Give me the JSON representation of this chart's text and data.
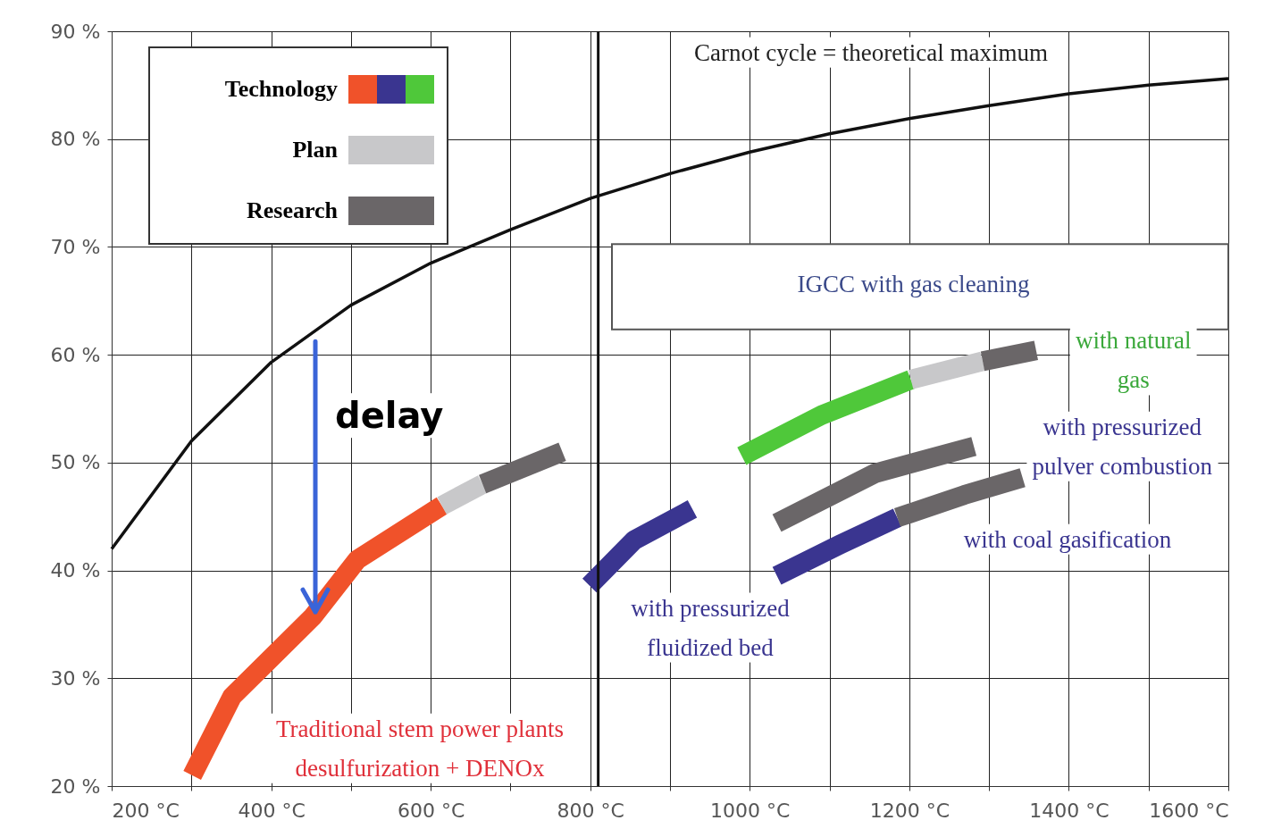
{
  "chart_data": {
    "type": "line",
    "xlim": [
      200,
      1600
    ],
    "ylim": [
      20,
      90
    ],
    "xticks": [
      {
        "value": 200,
        "label": "200 °C"
      },
      {
        "value": 300,
        "label": null
      },
      {
        "value": 400,
        "label": "400 °C"
      },
      {
        "value": 500,
        "label": null
      },
      {
        "value": 600,
        "label": "600 °C"
      },
      {
        "value": 700,
        "label": null
      },
      {
        "value": 800,
        "label": "800 °C"
      },
      {
        "value": 900,
        "label": null
      },
      {
        "value": 1000,
        "label": "1000 °C"
      },
      {
        "value": 1100,
        "label": null
      },
      {
        "value": 1200,
        "label": "1200 °C"
      },
      {
        "value": 1300,
        "label": null
      },
      {
        "value": 1400,
        "label": "1400 °C"
      },
      {
        "value": 1500,
        "label": null
      },
      {
        "value": 1600,
        "label": "1600 °C"
      }
    ],
    "yticks": [
      {
        "value": 20,
        "label": "20 %"
      },
      {
        "value": 30,
        "label": "30 %"
      },
      {
        "value": 40,
        "label": "40 %"
      },
      {
        "value": 50,
        "label": "50 %"
      },
      {
        "value": 60,
        "label": "60 %"
      },
      {
        "value": 70,
        "label": "70 %"
      },
      {
        "value": 80,
        "label": "80 %"
      },
      {
        "value": 90,
        "label": "90 %"
      }
    ],
    "grid": true,
    "legend": "top left",
    "series": [
      {
        "color": "#111111",
        "x": [
          200,
          300,
          400,
          500,
          600,
          700,
          800,
          900,
          1000,
          1100,
          1200,
          1300,
          1400,
          1500,
          1600
        ],
        "values": [
          42,
          52,
          59.3,
          64.6,
          68.5,
          71.6,
          74.5,
          76.8,
          78.8,
          80.5,
          81.9,
          83.1,
          84.2,
          85,
          85.6
        ]
      },
      {
        "name": "Technology",
        "color": "#f0522a",
        "x": [
          301,
          351,
          452,
          508,
          614
        ],
        "values": [
          21,
          28.3,
          35.7,
          41,
          46
        ]
      },
      {
        "color": "#3a3590",
        "x": [
          799,
          855,
          928
        ],
        "values": [
          38.6,
          42.8,
          45.7
        ]
      },
      {
        "color": "#3a3590",
        "x": [
          1034,
          1113,
          1185
        ],
        "values": [
          39.5,
          42.4,
          44.9
        ]
      },
      {
        "color": "#4fc83a",
        "x": [
          990,
          1090,
          1202
        ],
        "values": [
          50.6,
          54.4,
          57.7
        ]
      },
      {
        "name": "Plan",
        "color": "#c8c8ca",
        "x": [
          614,
          665
        ],
        "values": [
          46,
          48
        ]
      },
      {
        "color": "#c8c8ca",
        "x": [
          1202,
          1292
        ],
        "values": [
          57.7,
          59.4
        ]
      },
      {
        "name": "Research",
        "color": "#6a6668",
        "x": [
          665,
          765
        ],
        "values": [
          48,
          51
        ]
      },
      {
        "color": "#6a6668",
        "x": [
          1292,
          1359
        ],
        "values": [
          59.4,
          60.4
        ]
      },
      {
        "color": "#6a6668",
        "x": [
          1034,
          1157,
          1281
        ],
        "values": [
          44.4,
          49,
          51.5
        ]
      },
      {
        "color": "#6a6668",
        "x": [
          1185,
          1269,
          1342
        ],
        "values": [
          44.9,
          47,
          48.6
        ]
      }
    ],
    "ref_lines": [
      {
        "axis": "x",
        "value": 810,
        "color": "#111111"
      }
    ],
    "annotations": [
      "Carnot cycle = theoretical maximum",
      "IGCC with gas cleaning",
      "with natural\ngas",
      "with pressurized\npulver combustion",
      "with coal gasification",
      "with pressurized\nfluidized bed",
      "Traditional stem power plants\ndesulfurization + DENOx",
      "delay"
    ]
  }
}
